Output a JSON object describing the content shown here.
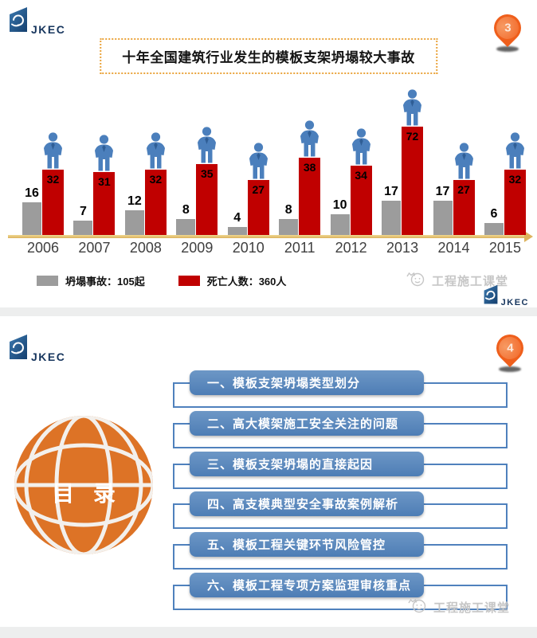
{
  "brand": "JKEC",
  "slide1": {
    "logo": "JKEC",
    "page_marker": "3",
    "title": "十年全国建筑行业发生的模板支架坍塌较大事故",
    "legend": {
      "accidents_label": "坍塌事故：105起",
      "deaths_label": "死亡人数：360人"
    },
    "watermark": "工程施工课堂",
    "watermark_logo": "JKEC",
    "chart_data": {
      "type": "bar",
      "title": "十年全国建筑行业发生的模板支架坍塌较大事故",
      "categories": [
        "2006",
        "2007",
        "2008",
        "2009",
        "2010",
        "2011",
        "2012",
        "2013",
        "2014",
        "2015"
      ],
      "series": [
        {
          "name": "坍塌事故",
          "total_label": "坍塌事故：105起",
          "color": "#9c9c9c",
          "values": [
            16,
            7,
            12,
            8,
            4,
            8,
            10,
            17,
            17,
            6
          ]
        },
        {
          "name": "死亡人数",
          "total_label": "死亡人数：360人",
          "color": "#c00000",
          "values": [
            32,
            31,
            32,
            35,
            27,
            38,
            34,
            72,
            27,
            32
          ]
        }
      ],
      "xlabel": "",
      "ylabel": "",
      "grid": false,
      "legend_position": "bottom",
      "annotations": "蓝色人形图标立于每根死亡人数柱顶端；金色横轴带右向箭头；灰柱数值标在柱顶上方，红柱数值标在柱内顶部"
    }
  },
  "slide2": {
    "logo": "JKEC",
    "page_marker": "4",
    "toc_label": "目 录",
    "items": [
      {
        "label": "一、模板支架坍塌类型划分"
      },
      {
        "label": "二、高大模架施工安全关注的问题"
      },
      {
        "label": "三、模板支架坍塌的直接起因"
      },
      {
        "label": "四、高支模典型安全事故案例解析"
      },
      {
        "label": "五、模板工程关键环节风险管控"
      },
      {
        "label": "六、模板工程专项方案监理审核重点"
      }
    ],
    "watermark": "工程施工课堂"
  },
  "colors": {
    "bar_gray": "#9c9c9c",
    "bar_red": "#c00000",
    "axis_gold": "#ddb45e",
    "toc_blue": "#4f81bd",
    "globe_orange": "#dd7326",
    "pin_orange": "#ef5f1c",
    "title_border_orange": "#eaa43c",
    "person_blue": "#4b7fbc"
  }
}
